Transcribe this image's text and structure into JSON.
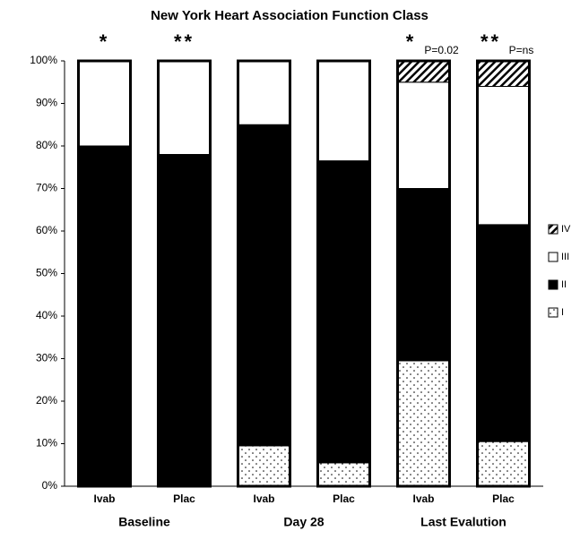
{
  "chart_data": {
    "type": "stacked-bar",
    "title": "New York Heart Association Function Class",
    "categories": [
      "Ivab",
      "Plac",
      "Ivab",
      "Plac",
      "Ivab",
      "Plac"
    ],
    "groups": [
      "Baseline",
      "Day 28",
      "Last Evalution"
    ],
    "markers": [
      "*",
      "**",
      null,
      null,
      "*",
      "**"
    ],
    "p_labels": [
      null,
      null,
      null,
      null,
      "P=0.02",
      "P=ns"
    ],
    "series": [
      {
        "name": "I",
        "color": "#ffffff",
        "pattern": "dots",
        "values": [
          0,
          0,
          9.5,
          5.5,
          29.5,
          10.5
        ]
      },
      {
        "name": "II",
        "color": "#000000",
        "values": [
          80,
          78,
          75.5,
          71,
          40.5,
          51
        ]
      },
      {
        "name": "III",
        "color": "#ffffff",
        "values": [
          20,
          22,
          15,
          23.5,
          25,
          32.5
        ]
      },
      {
        "name": "IV",
        "color": "#ffffff",
        "pattern": "hatch",
        "values": [
          0,
          0,
          0,
          0,
          5,
          6
        ]
      }
    ],
    "ylim": [
      0,
      100
    ],
    "yticks": [
      {
        "value": 0,
        "label": "0%"
      },
      {
        "value": 10,
        "label": "10%"
      },
      {
        "value": 20,
        "label": "20%"
      },
      {
        "value": 30,
        "label": "30%"
      },
      {
        "value": 40,
        "label": "40%"
      },
      {
        "value": 50,
        "label": "50%"
      },
      {
        "value": 60,
        "label": "60%"
      },
      {
        "value": 70,
        "label": "70%"
      },
      {
        "value": 80,
        "label": "80%"
      },
      {
        "value": 90,
        "label": "90%"
      },
      {
        "value": 100,
        "label": "100%"
      }
    ],
    "legend": "right"
  }
}
